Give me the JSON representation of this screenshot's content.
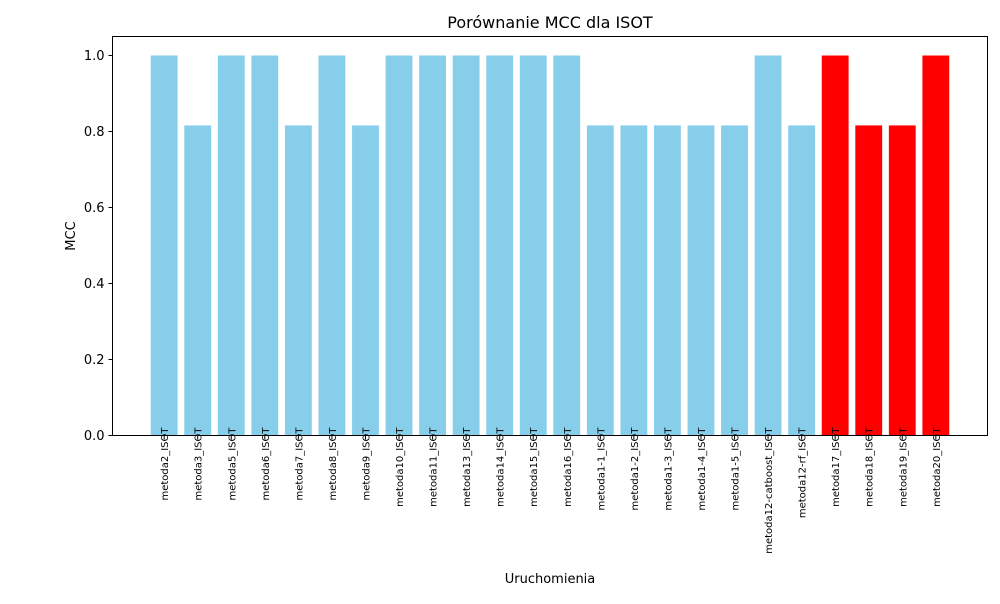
{
  "chart_data": {
    "type": "bar",
    "title": "Porównanie MCC dla ISOT",
    "xlabel": "Uruchomienia",
    "ylabel": "MCC",
    "ylim": [
      0,
      1.05
    ],
    "yticks": [
      0.0,
      0.2,
      0.4,
      0.6,
      0.8,
      1.0
    ],
    "ytick_labels": [
      "0.0",
      "0.2",
      "0.4",
      "0.6",
      "0.8",
      "1.0"
    ],
    "grid": false,
    "legend": "none",
    "categories": [
      "metoda2_ISOT",
      "metoda3_ISOT",
      "metoda5_ISOT",
      "metoda6_ISOT",
      "metoda7_ISOT",
      "metoda8_ISOT",
      "metoda9_ISOT",
      "metoda10_ISOT",
      "metoda11_ISOT",
      "metoda13_ISOT",
      "metoda14_ISOT",
      "metoda15_ISOT",
      "metoda16_ISOT",
      "metoda1-1_ISOT",
      "metoda1-2_ISOT",
      "metoda1-3_ISOT",
      "metoda1-4_ISOT",
      "metoda1-5_ISOT",
      "metoda12-catboost_ISOT",
      "metoda12-rf_ISOT",
      "metoda17_ISOT",
      "metoda18_ISOT",
      "metoda19_ISOT",
      "metoda20_ISOT"
    ],
    "values": [
      1.0,
      0.816,
      1.0,
      1.0,
      0.816,
      1.0,
      0.816,
      1.0,
      1.0,
      1.0,
      1.0,
      1.0,
      1.0,
      0.816,
      0.816,
      0.816,
      0.816,
      0.816,
      1.0,
      0.816,
      1.0,
      0.816,
      0.816,
      1.0
    ],
    "bar_colors": [
      "#87CEEB",
      "#87CEEB",
      "#87CEEB",
      "#87CEEB",
      "#87CEEB",
      "#87CEEB",
      "#87CEEB",
      "#87CEEB",
      "#87CEEB",
      "#87CEEB",
      "#87CEEB",
      "#87CEEB",
      "#87CEEB",
      "#87CEEB",
      "#87CEEB",
      "#87CEEB",
      "#87CEEB",
      "#87CEEB",
      "#87CEEB",
      "#87CEEB",
      "#FF0000",
      "#FF0000",
      "#FF0000",
      "#FF0000"
    ]
  }
}
